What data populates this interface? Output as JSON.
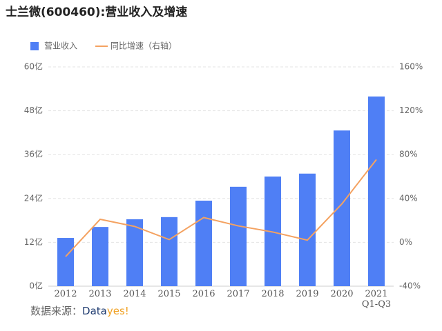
{
  "chart_data": {
    "type": "bar-line",
    "title": "士兰微(600460):营业收入及增速",
    "categories": [
      "2012",
      "2013",
      "2014",
      "2015",
      "2016",
      "2017",
      "2018",
      "2019",
      "2020",
      "2021\nQ1-Q3"
    ],
    "series": [
      {
        "name": "营业收入",
        "color": "#4f7ff5",
        "type": "bar",
        "values": [
          13.2,
          16.2,
          18.3,
          18.9,
          23.4,
          27.2,
          30.0,
          30.8,
          42.6,
          51.9
        ]
      },
      {
        "name": "同比增速（右轴）",
        "color": "#f4a261",
        "type": "line",
        "axis": "y2",
        "values": [
          -13,
          21,
          14.5,
          2.5,
          22.6,
          15,
          9.4,
          2,
          35,
          75.5
        ]
      }
    ],
    "ylim": [
      0,
      60
    ],
    "yticks": [
      {
        "value": 0,
        "label": "0亿"
      },
      {
        "value": 12,
        "label": "12亿"
      },
      {
        "value": 24,
        "label": "24亿"
      },
      {
        "value": 36,
        "label": "36亿"
      },
      {
        "value": 48,
        "label": "48亿"
      },
      {
        "value": 60,
        "label": "60亿"
      }
    ],
    "y2lim": [
      -40,
      160
    ],
    "y2ticks": [
      {
        "value": -40,
        "label": "-40%"
      },
      {
        "value": 0,
        "label": "0%"
      },
      {
        "value": 40,
        "label": "40%"
      },
      {
        "value": 80,
        "label": "80%"
      },
      {
        "value": 120,
        "label": "120%"
      },
      {
        "value": 160,
        "label": "160%"
      }
    ],
    "grid": true
  },
  "source": {
    "label": "数据来源：",
    "brand": [
      "Data",
      "yes!"
    ]
  }
}
